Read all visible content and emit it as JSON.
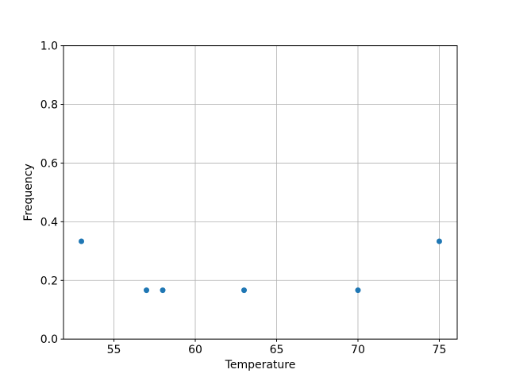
{
  "figure": {
    "background": "#ffffff"
  },
  "chart_data": {
    "type": "scatter",
    "title": "",
    "xlabel": "Temperature",
    "ylabel": "Frequency",
    "x": [
      53,
      57,
      58,
      63,
      70,
      75
    ],
    "y": [
      0.3333,
      0.1667,
      0.1667,
      0.1667,
      0.1667,
      0.3333
    ],
    "xlim": [
      51.9,
      76.1
    ],
    "ylim": [
      0.0,
      1.0
    ],
    "xticks": [
      55,
      60,
      65,
      70,
      75
    ],
    "xtick_labels": [
      "55",
      "60",
      "65",
      "70",
      "75"
    ],
    "yticks": [
      0.0,
      0.2,
      0.4,
      0.6,
      0.8,
      1.0
    ],
    "ytick_labels": [
      "0.0",
      "0.2",
      "0.4",
      "0.6",
      "0.8",
      "1.0"
    ],
    "grid": true,
    "legend": null,
    "marker_size_px": 7,
    "colors": {
      "marker": "#1f77b4",
      "grid": "#b0b0b0",
      "spine": "#000000",
      "text": "#000000"
    }
  }
}
